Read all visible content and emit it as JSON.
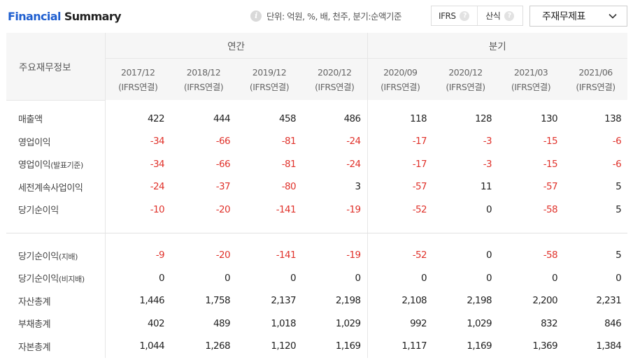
{
  "header": {
    "title_part1": "Financial",
    "title_part2": " Summary",
    "unit_text": "단위: 억원, %, 배, 천주, 분기:순액기준",
    "toggle": {
      "option1": "IFRS",
      "option2": "산식"
    },
    "select_value": "주재무제표"
  },
  "icons": {
    "info": "info-icon",
    "help": "question-icon",
    "dropdown": "chevron-down-icon"
  },
  "colors": {
    "accent": "#1f5fd0",
    "negative": "#e0322b",
    "header_bg": "#f6f6f6"
  },
  "table": {
    "corner_label": "주요재무정보",
    "group_annual": "연간",
    "group_quarter": "분기",
    "periods": [
      {
        "date": "2017/12",
        "basis": "(IFRS연결)"
      },
      {
        "date": "2018/12",
        "basis": "(IFRS연결)"
      },
      {
        "date": "2019/12",
        "basis": "(IFRS연결)"
      },
      {
        "date": "2020/12",
        "basis": "(IFRS연결)"
      },
      {
        "date": "2020/09",
        "basis": "(IFRS연결)"
      },
      {
        "date": "2020/12",
        "basis": "(IFRS연결)"
      },
      {
        "date": "2021/03",
        "basis": "(IFRS연결)"
      },
      {
        "date": "2021/06",
        "basis": "(IFRS연결)"
      }
    ],
    "section1": [
      {
        "label": "매출액",
        "sub": "",
        "values": [
          "422",
          "444",
          "458",
          "486",
          "118",
          "128",
          "130",
          "138"
        ]
      },
      {
        "label": "영업이익",
        "sub": "",
        "values": [
          "-34",
          "-66",
          "-81",
          "-24",
          "-17",
          "-3",
          "-15",
          "-6"
        ]
      },
      {
        "label": "영업이익",
        "sub": "(발표기준)",
        "values": [
          "-34",
          "-66",
          "-81",
          "-24",
          "-17",
          "-3",
          "-15",
          "-6"
        ]
      },
      {
        "label": "세전계속사업이익",
        "sub": "",
        "values": [
          "-24",
          "-37",
          "-80",
          "3",
          "-57",
          "11",
          "-57",
          "5"
        ]
      },
      {
        "label": "당기순이익",
        "sub": "",
        "values": [
          "-10",
          "-20",
          "-141",
          "-19",
          "-52",
          "0",
          "-58",
          "5"
        ]
      }
    ],
    "section2": [
      {
        "label": "당기순이익",
        "sub": "(지배)",
        "values": [
          "-9",
          "-20",
          "-141",
          "-19",
          "-52",
          "0",
          "-58",
          "5"
        ]
      },
      {
        "label": "당기순이익",
        "sub": "(비지배)",
        "values": [
          "0",
          "0",
          "0",
          "0",
          "0",
          "0",
          "0",
          "0"
        ]
      },
      {
        "label": "자산총계",
        "sub": "",
        "values": [
          "1,446",
          "1,758",
          "2,137",
          "2,198",
          "2,108",
          "2,198",
          "2,200",
          "2,231"
        ]
      },
      {
        "label": "부채총계",
        "sub": "",
        "values": [
          "402",
          "489",
          "1,018",
          "1,029",
          "992",
          "1,029",
          "832",
          "846"
        ]
      },
      {
        "label": "자본총계",
        "sub": "",
        "values": [
          "1,044",
          "1,268",
          "1,120",
          "1,169",
          "1,117",
          "1,169",
          "1,369",
          "1,384"
        ]
      }
    ]
  }
}
